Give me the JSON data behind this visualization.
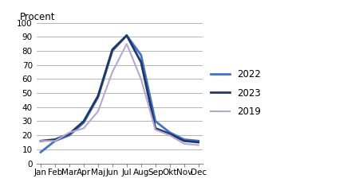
{
  "months": [
    "Jan",
    "Feb",
    "Mar",
    "Apr",
    "Maj",
    "Jun",
    "Jul",
    "Aug",
    "Sep",
    "Okt",
    "Nov",
    "Dec"
  ],
  "series": {
    "2022": [
      8,
      16,
      20,
      29,
      47,
      80,
      91,
      77,
      30,
      22,
      17,
      16
    ],
    "2023": [
      16,
      17,
      21,
      30,
      48,
      81,
      91,
      72,
      25,
      21,
      16,
      15
    ],
    "2019": [
      16,
      16,
      22,
      25,
      37,
      65,
      85,
      60,
      24,
      20,
      14,
      13
    ]
  },
  "colors": {
    "2022": "#4472C4",
    "2023": "#1F3864",
    "2019": "#B4A7D6"
  },
  "linewidths": {
    "2022": 2.0,
    "2023": 2.0,
    "2019": 1.5
  },
  "ylabel": "Procent",
  "ylim": [
    0,
    100
  ],
  "yticks": [
    0,
    10,
    20,
    30,
    40,
    50,
    60,
    70,
    80,
    90,
    100
  ],
  "grid_color": "#AAAAAA",
  "background_color": "#FFFFFF",
  "legend_order": [
    "2022",
    "2023",
    "2019"
  ]
}
